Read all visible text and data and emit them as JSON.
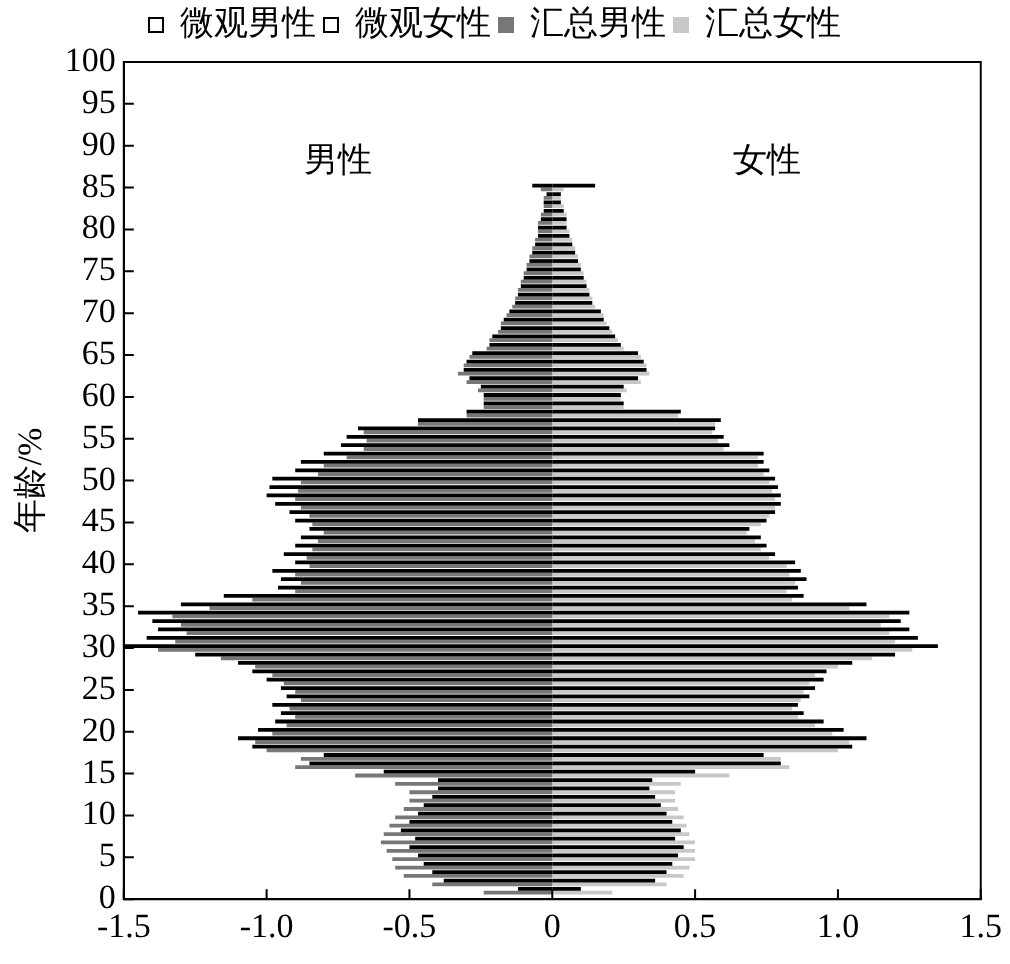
{
  "chart_data": {
    "type": "bar",
    "orientation": "horizontal",
    "ylabel": "年龄/%",
    "annotations": [
      "男性",
      "女性"
    ],
    "x": [
      1,
      2,
      3,
      4,
      5,
      6,
      7,
      8,
      9,
      10,
      11,
      12,
      13,
      14,
      15,
      16,
      17,
      18,
      19,
      20,
      21,
      22,
      23,
      24,
      25,
      26,
      27,
      28,
      29,
      30,
      31,
      32,
      33,
      34,
      35,
      36,
      37,
      38,
      39,
      40,
      41,
      42,
      43,
      44,
      45,
      46,
      47,
      48,
      49,
      50,
      51,
      52,
      53,
      54,
      55,
      56,
      57,
      58,
      59,
      60,
      61,
      62,
      63,
      64,
      65,
      66,
      67,
      68,
      69,
      70,
      71,
      72,
      73,
      74,
      75,
      76,
      77,
      78,
      79,
      80,
      81,
      82,
      83,
      84,
      85
    ],
    "series": [
      {
        "name": "微观男性",
        "color": "#000000",
        "values": [
          -0.12,
          -0.38,
          -0.42,
          -0.45,
          -0.47,
          -0.5,
          -0.48,
          -0.53,
          -0.5,
          -0.47,
          -0.45,
          -0.42,
          -0.4,
          -0.4,
          -0.59,
          -0.85,
          -0.8,
          -1.05,
          -1.1,
          -1.03,
          -0.97,
          -0.95,
          -0.98,
          -0.93,
          -0.95,
          -1.0,
          -1.05,
          -1.1,
          -1.25,
          -1.5,
          -1.42,
          -1.38,
          -1.4,
          -1.45,
          -1.3,
          -1.15,
          -0.96,
          -0.95,
          -0.98,
          -0.9,
          -0.94,
          -0.9,
          -0.88,
          -0.85,
          -0.9,
          -0.92,
          -0.97,
          -1.0,
          -0.99,
          -0.98,
          -0.9,
          -0.88,
          -0.8,
          -0.74,
          -0.72,
          -0.68,
          -0.47,
          -0.3,
          -0.24,
          -0.24,
          -0.25,
          -0.29,
          -0.31,
          -0.3,
          -0.28,
          -0.22,
          -0.21,
          -0.18,
          -0.17,
          -0.15,
          -0.13,
          -0.12,
          -0.11,
          -0.1,
          -0.09,
          -0.08,
          -0.07,
          -0.06,
          -0.05,
          -0.05,
          -0.04,
          -0.03,
          -0.03,
          -0.02,
          -0.07
        ]
      },
      {
        "name": "微观女性",
        "color": "#000000",
        "values": [
          0.1,
          0.36,
          0.4,
          0.42,
          0.44,
          0.46,
          0.43,
          0.45,
          0.42,
          0.4,
          0.38,
          0.36,
          0.34,
          0.35,
          0.5,
          0.8,
          0.74,
          1.05,
          1.1,
          1.02,
          0.95,
          0.88,
          0.86,
          0.9,
          0.92,
          0.95,
          0.96,
          1.05,
          1.2,
          1.35,
          1.28,
          1.25,
          1.22,
          1.25,
          1.1,
          0.88,
          0.86,
          0.89,
          0.87,
          0.85,
          0.78,
          0.75,
          0.73,
          0.69,
          0.75,
          0.78,
          0.8,
          0.8,
          0.79,
          0.78,
          0.76,
          0.74,
          0.74,
          0.62,
          0.6,
          0.57,
          0.59,
          0.45,
          0.25,
          0.24,
          0.25,
          0.3,
          0.33,
          0.32,
          0.3,
          0.24,
          0.22,
          0.2,
          0.18,
          0.17,
          0.14,
          0.13,
          0.12,
          0.11,
          0.1,
          0.09,
          0.08,
          0.07,
          0.06,
          0.05,
          0.05,
          0.04,
          0.03,
          0.03,
          0.15
        ]
      },
      {
        "name": "汇总男性",
        "color": "#777777",
        "values": [
          -0.24,
          -0.42,
          -0.52,
          -0.55,
          -0.56,
          -0.58,
          -0.6,
          -0.59,
          -0.57,
          -0.55,
          -0.52,
          -0.5,
          -0.5,
          -0.55,
          -0.69,
          -0.9,
          -0.88,
          -1.0,
          -1.04,
          -0.98,
          -0.93,
          -0.9,
          -0.92,
          -0.88,
          -0.9,
          -0.94,
          -0.98,
          -1.04,
          -1.16,
          -1.38,
          -1.32,
          -1.28,
          -1.3,
          -1.33,
          -1.2,
          -1.05,
          -0.9,
          -0.88,
          -0.9,
          -0.85,
          -0.86,
          -0.84,
          -0.82,
          -0.8,
          -0.84,
          -0.85,
          -0.88,
          -0.9,
          -0.89,
          -0.88,
          -0.82,
          -0.8,
          -0.72,
          -0.66,
          -0.65,
          -0.66,
          -0.47,
          -0.3,
          -0.24,
          -0.24,
          -0.26,
          -0.3,
          -0.33,
          -0.31,
          -0.29,
          -0.23,
          -0.22,
          -0.19,
          -0.18,
          -0.16,
          -0.14,
          -0.13,
          -0.12,
          -0.11,
          -0.1,
          -0.09,
          -0.08,
          -0.07,
          -0.06,
          -0.05,
          -0.05,
          -0.04,
          -0.03,
          -0.03,
          -0.04
        ]
      },
      {
        "name": "汇总女性",
        "color": "#c8c8c8",
        "values": [
          0.21,
          0.4,
          0.46,
          0.48,
          0.5,
          0.5,
          0.5,
          0.48,
          0.47,
          0.46,
          0.44,
          0.43,
          0.43,
          0.45,
          0.62,
          0.83,
          0.8,
          1.0,
          1.04,
          0.98,
          0.92,
          0.86,
          0.84,
          0.87,
          0.88,
          0.9,
          0.92,
          1.0,
          1.12,
          1.26,
          1.2,
          1.18,
          1.15,
          1.18,
          1.04,
          0.84,
          0.82,
          0.85,
          0.83,
          0.82,
          0.76,
          0.73,
          0.71,
          0.68,
          0.73,
          0.76,
          0.78,
          0.78,
          0.77,
          0.76,
          0.74,
          0.72,
          0.72,
          0.6,
          0.58,
          0.56,
          0.57,
          0.44,
          0.25,
          0.24,
          0.26,
          0.31,
          0.34,
          0.33,
          0.31,
          0.25,
          0.23,
          0.21,
          0.19,
          0.18,
          0.15,
          0.14,
          0.13,
          0.12,
          0.11,
          0.1,
          0.09,
          0.08,
          0.07,
          0.06,
          0.05,
          0.05,
          0.04,
          0.03,
          0.04
        ]
      }
    ],
    "xlim": [
      -1.5,
      1.5
    ],
    "xticks": [
      -1.5,
      {
        "value": -1.0,
        "label": "-1.0"
      },
      -0.5,
      0,
      0.5,
      {
        "value": 1.0,
        "label": "1.0"
      },
      1.5
    ],
    "ylim": [
      0,
      100
    ],
    "yticks": [
      0,
      5,
      10,
      15,
      20,
      25,
      30,
      35,
      40,
      45,
      50,
      55,
      60,
      65,
      70,
      75,
      80,
      85,
      90,
      95,
      100
    ],
    "grid": false,
    "legend": "top"
  }
}
